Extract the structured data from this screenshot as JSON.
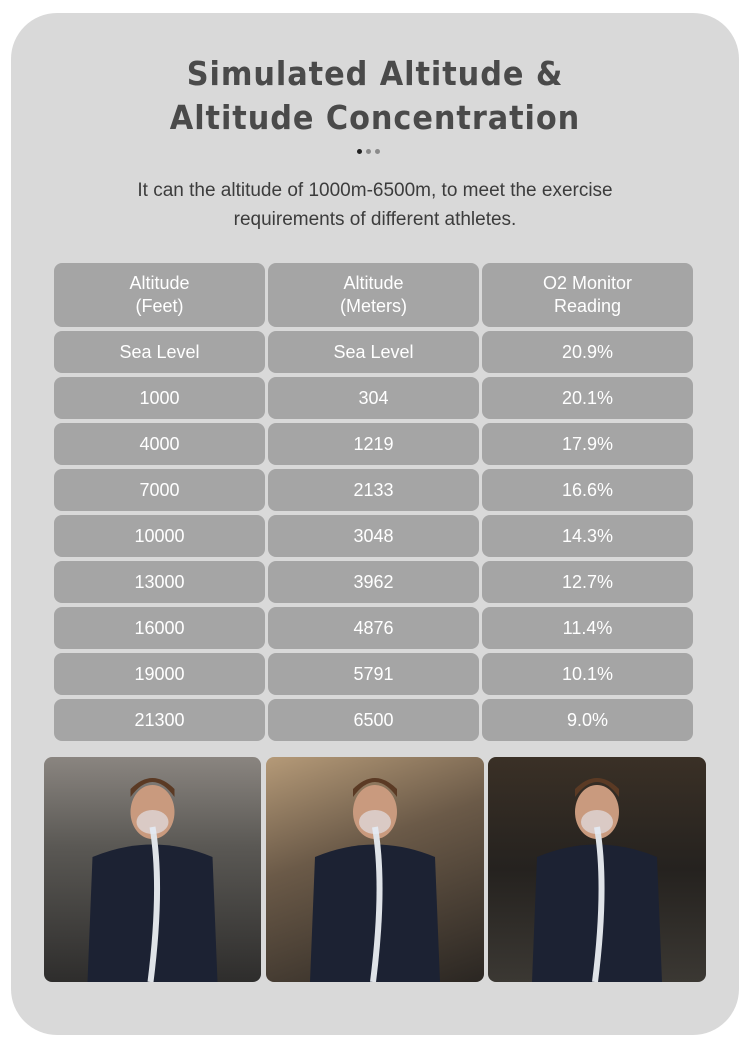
{
  "title_line1": "Simulated Altitude &",
  "title_line2": "Altitude Concentration",
  "subtitle_line1": "It can the altitude of 1000m-6500m, to meet the exercise",
  "subtitle_line2": "requirements of different athletes.",
  "colors": {
    "card_bg": "#d9d9d9",
    "cell_bg": "#a5a5a5",
    "title": "#4a4a4a",
    "dot_active": "#222222",
    "dot_inactive": "#8a8a8a"
  },
  "table": {
    "headers": [
      [
        "Altitude",
        "(Feet)"
      ],
      [
        "Altitude",
        "(Meters)"
      ],
      [
        "O2 Monitor",
        "Reading"
      ]
    ],
    "rows": [
      [
        "Sea Level",
        "Sea Level",
        "20.9%"
      ],
      [
        "1000",
        "304",
        "20.1%"
      ],
      [
        "4000",
        "1219",
        "17.9%"
      ],
      [
        "7000",
        "2133",
        "16.6%"
      ],
      [
        "10000",
        "3048",
        "14.3%"
      ],
      [
        "13000",
        "3962",
        "12.7%"
      ],
      [
        "16000",
        "4876",
        "11.4%"
      ],
      [
        "19000",
        "5791",
        "10.1%"
      ],
      [
        "21300",
        "6500",
        "9.0%"
      ]
    ]
  },
  "photos": [
    "athlete-rowing-with-mask",
    "athlete-running-with-mask",
    "athlete-battle-rope-with-mask"
  ]
}
